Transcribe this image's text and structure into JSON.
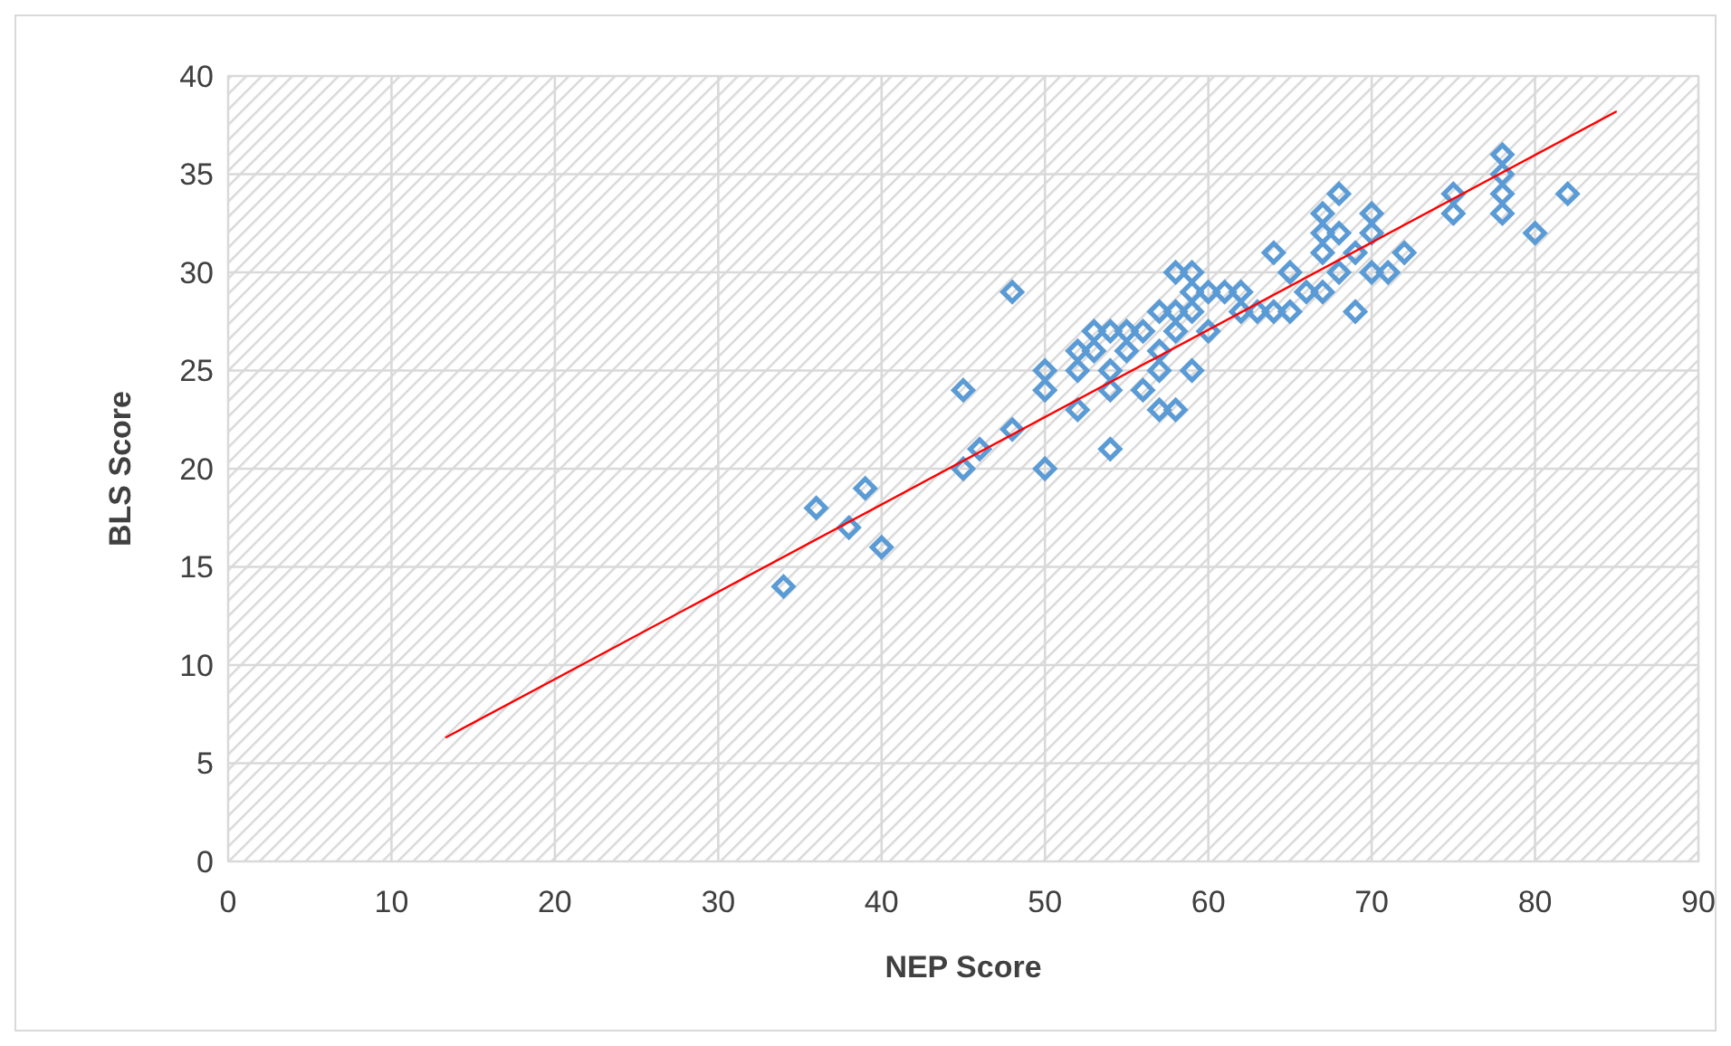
{
  "chart_data": {
    "type": "scatter",
    "xlabel": "NEP Score",
    "ylabel": "BLS Score",
    "xlim": [
      0,
      90
    ],
    "xticks": [
      0,
      10,
      20,
      30,
      40,
      50,
      60,
      70,
      80,
      90
    ],
    "ylim": [
      0,
      40
    ],
    "yticks": [
      0,
      5,
      10,
      15,
      20,
      25,
      30,
      35,
      40
    ],
    "grid": true,
    "marker": "diamond",
    "series": [
      {
        "color": "#5b9bd5",
        "x": [
          34,
          36,
          38,
          39,
          40,
          45,
          45,
          46,
          48,
          48,
          50,
          50,
          50,
          52,
          52,
          52,
          53,
          53,
          54,
          54,
          54,
          54,
          55,
          55,
          56,
          56,
          57,
          57,
          57,
          57,
          58,
          58,
          58,
          58,
          59,
          59,
          59,
          59,
          60,
          60,
          61,
          62,
          62,
          63,
          64,
          64,
          65,
          65,
          66,
          67,
          67,
          67,
          67,
          68,
          68,
          68,
          69,
          69,
          70,
          70,
          70,
          71,
          72,
          75,
          75,
          78,
          78,
          78,
          78,
          80,
          82
        ],
        "values": [
          14,
          18,
          17,
          19,
          16,
          24,
          20,
          21,
          29,
          22,
          25,
          24,
          20,
          26,
          25,
          23,
          27,
          26,
          27,
          25,
          24,
          21,
          27,
          26,
          27,
          24,
          28,
          26,
          25,
          23,
          30,
          28,
          27,
          23,
          30,
          29,
          28,
          25,
          29,
          27,
          29,
          29,
          28,
          28,
          31,
          28,
          30,
          28,
          29,
          33,
          32,
          31,
          29,
          34,
          32,
          30,
          31,
          28,
          33,
          32,
          30,
          30,
          31,
          34,
          33,
          36,
          35,
          34,
          33,
          32,
          34
        ]
      },
      {
        "type": "line",
        "color": "#ff0000",
        "marker": "none",
        "x": [
          13.3,
          85
        ],
        "values": [
          6.3,
          38.2
        ]
      }
    ]
  }
}
